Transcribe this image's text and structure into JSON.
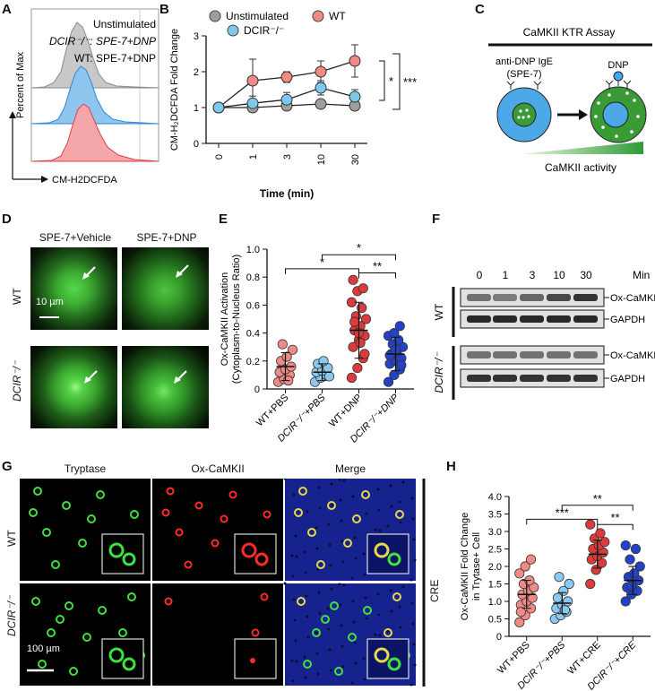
{
  "panels": {
    "A": {
      "label": "A",
      "legend": [
        "Unstimulated",
        "DCIR⁻/⁻: SPE-7+DNP",
        "WT: SPE-7+DNP"
      ],
      "ylabel": "Percent of Max",
      "xlabel": "CM-H2DCFDA",
      "colors": {
        "unstim": "#9a9a9a",
        "dcir": "#4ba3e3",
        "wt": "#e8646b"
      }
    },
    "B": {
      "label": "B",
      "legend": [
        "Unstimulated",
        "WT",
        "DCIR⁻/⁻"
      ],
      "ylabel": "CM-H₂DCFDA Fold Change",
      "xlabel": "Time (min)",
      "sig": [
        "*",
        "***"
      ],
      "colors": {
        "unstim": "#9e9e9e",
        "wt": "#f08a86",
        "dcir": "#7ec8ee"
      }
    },
    "C": {
      "label": "C",
      "title": "CaMKII KTR Assay",
      "ige": "anti-DNP IgE",
      "spe": "(SPE-7)",
      "dnp": "DNP",
      "gradient": "CaMKII activity"
    },
    "D": {
      "label": "D",
      "col1": "SPE-7+Vehicle",
      "col2": "SPE-7+DNP",
      "row1": "WT",
      "row2": "DCIR⁻/⁻",
      "scale": "10 µm"
    },
    "E": {
      "label": "E",
      "ylabel1": "Ox-CaMKII Activation",
      "ylabel2": "(Cytoplasm-to-Nucleus Ratio)",
      "categories": [
        "WT+PBS",
        "DCIR⁻/⁻+PBS",
        "WT+DNP",
        "DCIR⁻/⁻+DNP"
      ],
      "sig": [
        "*",
        "*",
        "**"
      ]
    },
    "F": {
      "label": "F",
      "times": [
        "0",
        "1",
        "3",
        "10",
        "30"
      ],
      "unit": "Min",
      "bands": [
        "Ox-CaMKII",
        "GAPDH",
        "Ox-CaMKII",
        "GAPDH"
      ],
      "row1": "WT",
      "row2": "DCIR⁻/⁻"
    },
    "G": {
      "label": "G",
      "cols": [
        "Tryptase",
        "Ox-CaMKII",
        "Merge"
      ],
      "row1": "WT",
      "row2": "DCIR⁻/⁻",
      "side": "CRE",
      "scale": "100 µm"
    },
    "H": {
      "label": "H",
      "ylabel1": "Ox-CaMKII Fold Change",
      "ylabel2": "in Trytase+ Cell",
      "categories": [
        "WT+PBS",
        "DCIR⁻/⁻+PBS",
        "WT+CRE",
        "DCIR⁻/⁻+CRE"
      ],
      "sig": [
        "**",
        "***",
        "**"
      ]
    }
  },
  "chart_data": [
    {
      "panel": "B",
      "type": "line",
      "x": [
        0,
        1,
        3,
        10,
        30
      ],
      "xlabel": "Time (min)",
      "ylabel": "CM-H₂DCFDA Fold Change",
      "ylim": [
        0,
        3
      ],
      "yticks": [
        0,
        1,
        2,
        3
      ],
      "series": [
        {
          "name": "Unstimulated",
          "values": [
            1.0,
            1.0,
            1.05,
            1.1,
            1.05
          ],
          "err": [
            0.05,
            0.1,
            0.1,
            0.1,
            0.1
          ]
        },
        {
          "name": "WT",
          "values": [
            1.0,
            1.75,
            1.85,
            2.0,
            2.3
          ],
          "err": [
            0.05,
            0.6,
            0.15,
            0.3,
            0.45
          ]
        },
        {
          "name": "DCIR⁻/⁻",
          "values": [
            1.0,
            1.12,
            1.22,
            1.55,
            1.3
          ],
          "err": [
            0.05,
            0.2,
            0.2,
            0.2,
            0.2
          ]
        }
      ]
    },
    {
      "panel": "E",
      "type": "scatter",
      "categories": [
        "WT+PBS",
        "DCIR⁻/⁻+PBS",
        "WT+DNP",
        "DCIR⁻/⁻+DNP"
      ],
      "ylim": [
        0,
        1.0
      ],
      "yticks": [
        0,
        0.2,
        0.4,
        0.6,
        0.8,
        1.0
      ],
      "ytick_labels": [
        "0",
        "0.2",
        "0.4",
        "0.6",
        "0.8",
        "1.0"
      ],
      "means": [
        0.16,
        0.12,
        0.42,
        0.25
      ],
      "sds": [
        0.1,
        0.06,
        0.2,
        0.12
      ],
      "points": [
        [
          0.05,
          0.07,
          0.1,
          0.12,
          0.14,
          0.16,
          0.2,
          0.23,
          0.28,
          0.32,
          0.06
        ],
        [
          0.05,
          0.08,
          0.1,
          0.12,
          0.13,
          0.15,
          0.18,
          0.2,
          0.09
        ],
        [
          0.08,
          0.15,
          0.22,
          0.3,
          0.35,
          0.38,
          0.42,
          0.45,
          0.5,
          0.52,
          0.58,
          0.62,
          0.7,
          0.72,
          0.78,
          0.4,
          0.25,
          0.48,
          0.33
        ],
        [
          0.05,
          0.1,
          0.14,
          0.18,
          0.2,
          0.22,
          0.25,
          0.27,
          0.3,
          0.32,
          0.35,
          0.38,
          0.4,
          0.45,
          0.24,
          0.28,
          0.17
        ]
      ],
      "colors": [
        "#f08a86",
        "#8cc9ee",
        "#dd3b3b",
        "#2442c8"
      ]
    },
    {
      "panel": "H",
      "type": "scatter",
      "categories": [
        "WT+PBS",
        "DCIR⁻/⁻+PBS",
        "WT+CRE",
        "DCIR⁻/⁻+CRE"
      ],
      "ylim": [
        0,
        4
      ],
      "yticks": [
        0,
        0.5,
        1.0,
        1.5,
        2.0,
        2.5,
        3.0,
        3.5,
        4.0
      ],
      "ytick_labels": [
        "0",
        "0.5",
        "1.0",
        "1.5",
        "2.0",
        "2.5",
        "3.0",
        "3.5",
        "4.0"
      ],
      "means": [
        1.2,
        0.95,
        2.35,
        1.6
      ],
      "sds": [
        0.4,
        0.3,
        0.4,
        0.4
      ],
      "points": [
        [
          0.4,
          0.6,
          0.8,
          0.9,
          1.0,
          1.1,
          1.2,
          1.3,
          1.4,
          1.5,
          1.6,
          1.8,
          2.0,
          2.2,
          0.7
        ],
        [
          0.5,
          0.6,
          0.7,
          0.8,
          0.9,
          1.0,
          1.1,
          1.3,
          1.5,
          1.7,
          0.75
        ],
        [
          1.5,
          1.9,
          2.1,
          2.2,
          2.3,
          2.4,
          2.5,
          2.6,
          2.7,
          2.8,
          2.95,
          3.2
        ],
        [
          1.0,
          1.2,
          1.3,
          1.4,
          1.5,
          1.6,
          1.7,
          1.8,
          2.0,
          2.2,
          2.5,
          2.6,
          1.45
        ]
      ],
      "colors": [
        "#f08a86",
        "#8cc9ee",
        "#dd3b3b",
        "#2442c8"
      ]
    }
  ]
}
